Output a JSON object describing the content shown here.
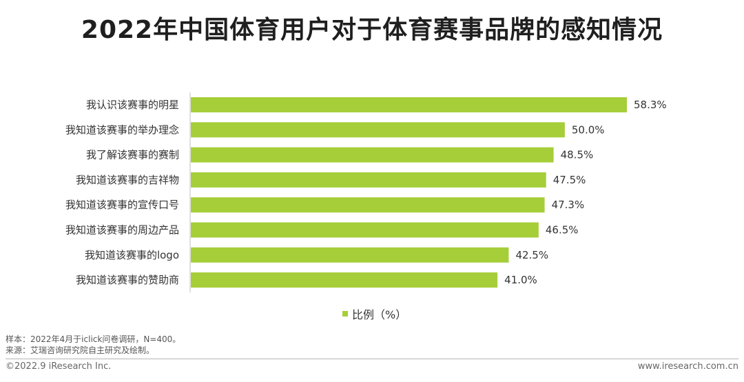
{
  "title": "2022年中国体育用户对于体育赛事品牌的感知情况",
  "chart_data": {
    "type": "bar",
    "orientation": "horizontal",
    "categories": [
      "我认识该赛事的明星",
      "我知道该赛事的举办理念",
      "我了解该赛事的赛制",
      "我知道该赛事的吉祥物",
      "我知道该赛事的宣传口号",
      "我知道该赛事的周边产品",
      "我知道该赛事的logo",
      "我知道该赛事的赞助商"
    ],
    "series": [
      {
        "name": "比例（%）",
        "values": [
          58.3,
          50.0,
          48.5,
          47.5,
          47.3,
          46.5,
          42.5,
          41.0
        ],
        "data_labels": [
          "58.3%",
          "50.0%",
          "48.5%",
          "47.5%",
          "47.3%",
          "46.5%",
          "42.5%",
          "41.0%"
        ]
      }
    ],
    "bar_color": "#a6ce39",
    "xlim": [
      0,
      58.3
    ],
    "grid": false,
    "legend_position": "bottom"
  },
  "notes": {
    "sample": "样本：2022年4月于iclick问卷调研，N=400。",
    "source": "来源：艾瑞咨询研究院自主研究及绘制。"
  },
  "footer": {
    "copyright": "©2022.9 iResearch Inc.",
    "website": "www.iresearch.com.cn"
  }
}
